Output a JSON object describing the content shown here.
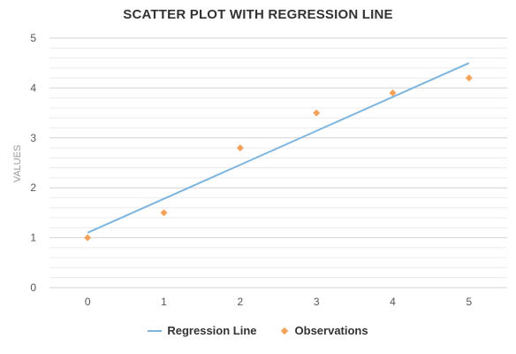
{
  "chart_data": {
    "type": "scatter",
    "title": "SCATTER PLOT WITH REGRESSION LINE",
    "xlabel": "",
    "ylabel": "VALUES",
    "xlim": [
      -0.5,
      5.5
    ],
    "ylim": [
      0,
      5
    ],
    "x_ticks": [
      0,
      1,
      2,
      3,
      4,
      5
    ],
    "y_ticks": [
      0,
      1,
      2,
      3,
      4,
      5
    ],
    "grid": true,
    "legend_position": "bottom",
    "series": [
      {
        "name": "Regression Line",
        "type": "line",
        "color": "#7eb6e0",
        "x": [
          0,
          5
        ],
        "y": [
          1.1,
          4.5
        ]
      },
      {
        "name": "Observations",
        "type": "scatter",
        "marker": "diamond",
        "color": "#f5a35b",
        "x": [
          0,
          1,
          2,
          3,
          4,
          5
        ],
        "y": [
          1.0,
          1.5,
          2.8,
          3.5,
          3.9,
          4.2
        ]
      }
    ]
  }
}
